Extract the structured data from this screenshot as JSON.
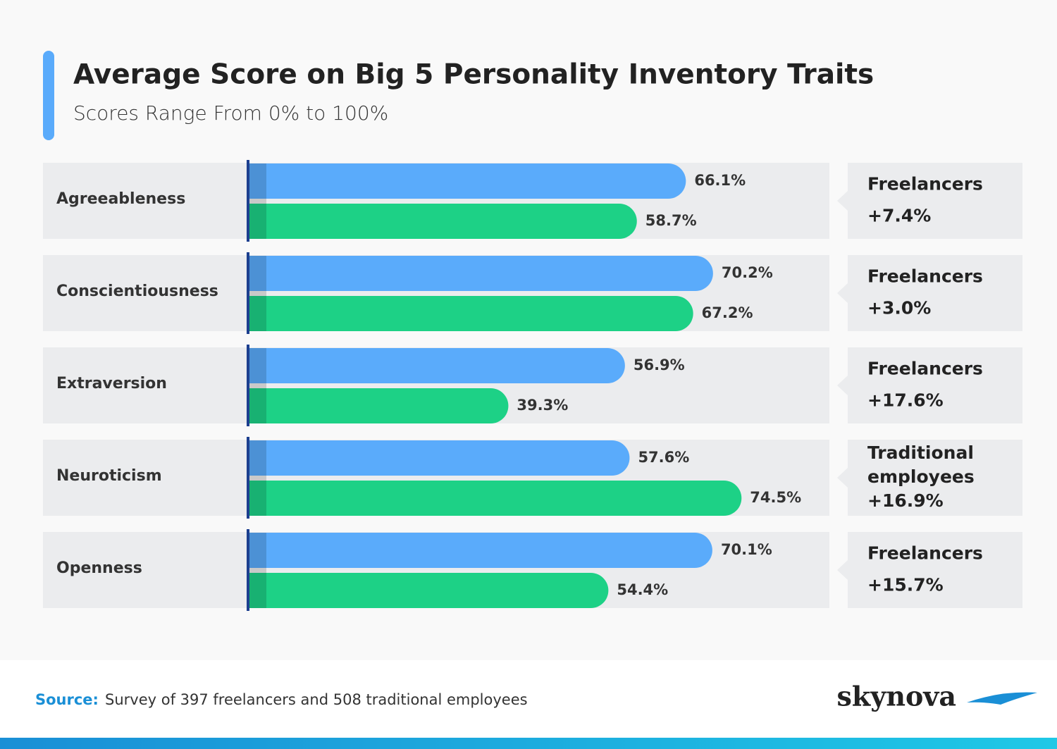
{
  "chart_data": {
    "type": "hbar",
    "title": "Average Score on Big 5 Personality Inventory Traits",
    "subtitle": "Scores Range From 0% to 100%",
    "categories": [
      "Agreeableness",
      "Conscientiousness",
      "Extraversion",
      "Neuroticism",
      "Openness"
    ],
    "series": [
      {
        "color": "#5aabfb",
        "values": [
          66.1,
          70.2,
          56.9,
          57.6,
          70.1
        ],
        "value_labels": [
          "66.1%",
          "70.2%",
          "56.9%",
          "57.6%",
          "70.1%"
        ]
      },
      {
        "color": "#1dd186",
        "values": [
          58.7,
          67.2,
          39.3,
          74.5,
          54.4
        ],
        "value_labels": [
          "58.7%",
          "67.2%",
          "39.3%",
          "74.5%",
          "54.4%"
        ]
      }
    ],
    "xlim": [
      0,
      100
    ],
    "annotations": [
      {
        "lines": [
          "Freelancers",
          "+7.4%"
        ]
      },
      {
        "lines": [
          "Freelancers",
          "+3.0%"
        ]
      },
      {
        "lines": [
          "Freelancers",
          "+17.6%"
        ]
      },
      {
        "lines": [
          "Traditional",
          "employees",
          "+16.9%"
        ]
      },
      {
        "lines": [
          "Freelancers",
          "+15.7%"
        ]
      }
    ]
  },
  "footer": {
    "source_label": "Source:",
    "source_text": "Survey of 397 freelancers and 508 traditional employees",
    "logo": "skynova"
  }
}
